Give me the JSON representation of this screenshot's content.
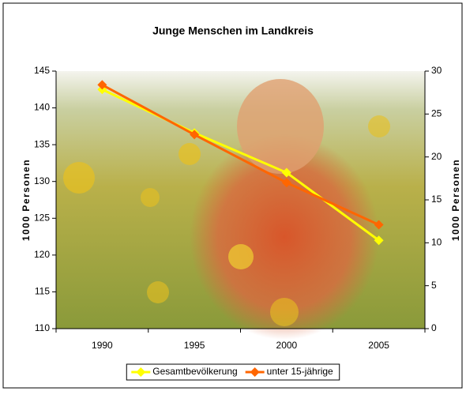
{
  "chart_data": {
    "type": "line",
    "title": "Junge Menschen im Landkreis",
    "categories": [
      "1990",
      "1995",
      "2000",
      "2005"
    ],
    "y_label": "1000 Personen",
    "y2_label": "1000 Personen",
    "ylim": [
      110,
      145
    ],
    "yticks": [
      110,
      115,
      120,
      125,
      130,
      135,
      140,
      145
    ],
    "y2lim": [
      0,
      30
    ],
    "y2ticks": [
      0,
      5,
      10,
      15,
      20,
      25,
      30
    ],
    "legend": "bottom",
    "series": [
      {
        "name": "Gesamtbevölkerung",
        "color": "#ffff00",
        "values": [
          142.5,
          136.6,
          131.2,
          122.0
        ]
      },
      {
        "name": "unter 15-jährige",
        "color": "#ff6600",
        "axis": "y2",
        "values": [
          28.4,
          22.6,
          17.0,
          12.1
        ]
      }
    ]
  }
}
